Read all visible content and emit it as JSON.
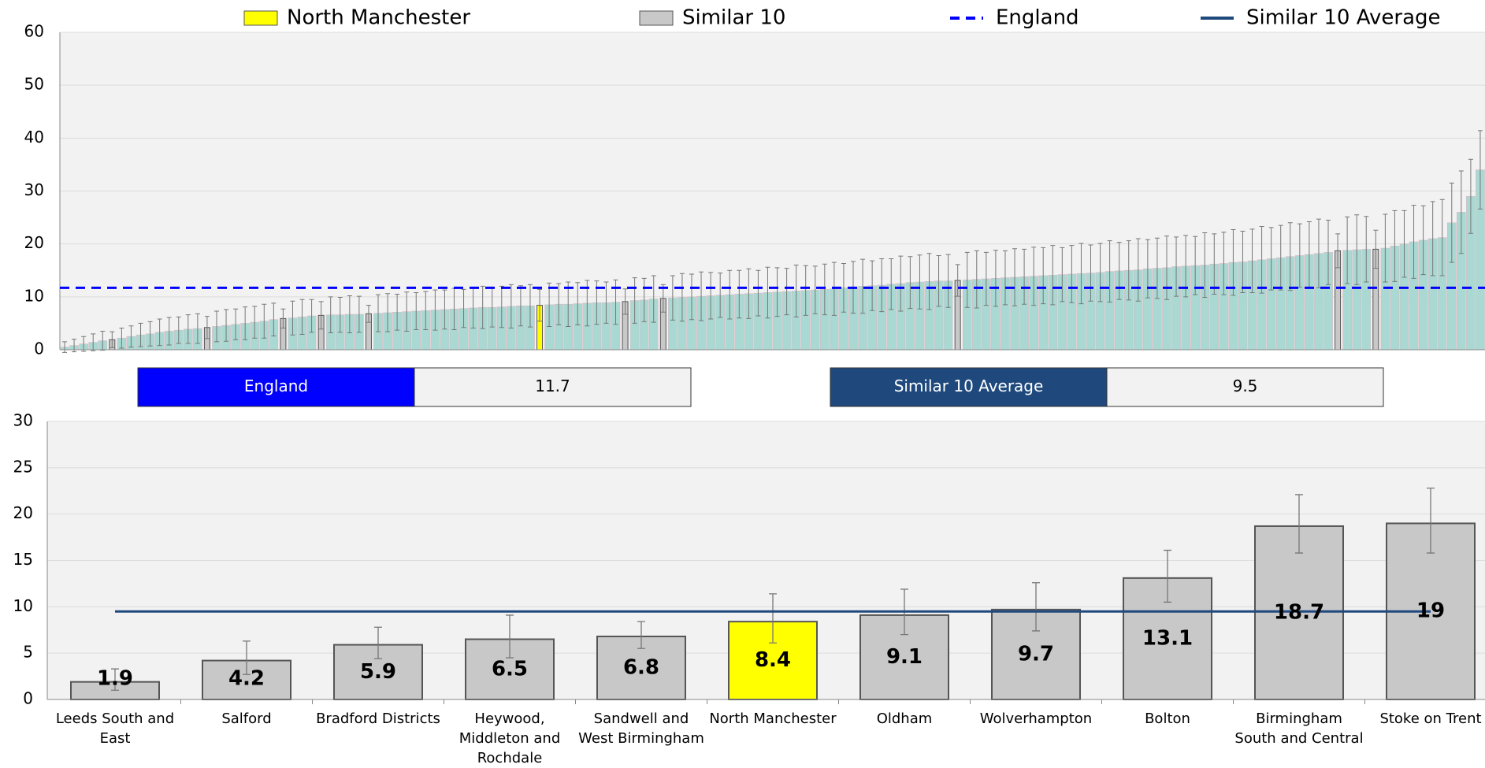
{
  "chart_data": [
    {
      "type": "bar",
      "values": [
        0.5,
        0.8,
        1.1,
        1.4,
        1.7,
        1.9,
        2.2,
        2.5,
        2.8,
        3.0,
        3.3,
        3.5,
        3.7,
        3.9,
        4.0,
        4.2,
        4.4,
        4.6,
        4.8,
        5.0,
        5.2,
        5.4,
        5.7,
        5.9,
        6.0,
        6.2,
        6.4,
        6.5,
        6.6,
        6.6,
        6.7,
        6.7,
        6.8,
        6.9,
        7.0,
        7.1,
        7.2,
        7.3,
        7.4,
        7.5,
        7.6,
        7.7,
        7.8,
        7.9,
        8.0,
        8.0,
        8.1,
        8.2,
        8.3,
        8.3,
        8.4,
        8.5,
        8.6,
        8.6,
        8.7,
        8.8,
        8.9,
        8.9,
        9.0,
        9.1,
        9.3,
        9.4,
        9.6,
        9.7,
        9.8,
        9.9,
        10.0,
        10.1,
        10.2,
        10.3,
        10.4,
        10.5,
        10.6,
        10.7,
        10.8,
        10.9,
        11.0,
        11.1,
        11.2,
        11.3,
        11.4,
        11.5,
        11.7,
        11.8,
        12.0,
        12.1,
        12.2,
        12.4,
        12.5,
        12.7,
        12.8,
        12.9,
        13.0,
        13.0,
        13.1,
        13.2,
        13.3,
        13.4,
        13.5,
        13.6,
        13.7,
        13.8,
        13.9,
        14.0,
        14.1,
        14.2,
        14.3,
        14.4,
        14.5,
        14.6,
        14.8,
        14.9,
        15.0,
        15.1,
        15.3,
        15.4,
        15.5,
        15.7,
        15.8,
        15.9,
        16.0,
        16.2,
        16.3,
        16.5,
        16.6,
        16.8,
        17.0,
        17.2,
        17.4,
        17.6,
        17.8,
        18.0,
        18.2,
        18.4,
        18.7,
        18.8,
        18.9,
        19.0,
        19.0,
        19.2,
        19.6,
        20.0,
        20.4,
        20.7,
        21.0,
        21.2,
        24.0,
        26.0,
        29.0,
        34.0
      ],
      "errors": [
        1.0,
        1.2,
        1.4,
        1.6,
        1.8,
        1.5,
        1.9,
        2.0,
        2.2,
        2.3,
        2.5,
        2.6,
        2.5,
        2.7,
        2.8,
        2.1,
        2.9,
        3.0,
        2.9,
        3.1,
        3.0,
        3.2,
        3.1,
        1.8,
        3.2,
        3.3,
        3.1,
        2.6,
        3.4,
        3.3,
        3.5,
        3.4,
        1.6,
        3.5,
        3.6,
        3.4,
        3.7,
        3.5,
        3.6,
        3.8,
        3.7,
        3.9,
        3.6,
        3.8,
        4.0,
        3.7,
        3.9,
        4.1,
        3.8,
        4.0,
        3.0,
        4.1,
        3.9,
        4.2,
        4.0,
        4.3,
        4.1,
        3.9,
        4.2,
        2.4,
        4.3,
        4.1,
        4.4,
        2.6,
        4.2,
        4.5,
        4.3,
        4.6,
        4.4,
        4.2,
        4.6,
        4.5,
        4.7,
        4.3,
        4.8,
        4.6,
        4.4,
        4.9,
        4.7,
        4.5,
        4.8,
        5.0,
        4.6,
        4.9,
        5.1,
        4.7,
        5.0,
        4.8,
        5.2,
        4.9,
        5.1,
        5.3,
        4.8,
        5.0,
        3.0,
        5.2,
        5.4,
        5.0,
        5.3,
        5.1,
        5.4,
        5.2,
        5.5,
        5.3,
        5.6,
        5.1,
        5.4,
        5.7,
        5.3,
        5.5,
        5.8,
        5.4,
        5.6,
        5.9,
        5.5,
        5.7,
        6.0,
        5.6,
        5.8,
        5.5,
        6.1,
        5.7,
        5.9,
        6.2,
        5.8,
        6.0,
        6.3,
        5.9,
        6.1,
        6.4,
        6.0,
        6.2,
        6.5,
        6.1,
        3.2,
        6.3,
        6.6,
        6.2,
        3.6,
        6.4,
        6.7,
        6.3,
        6.9,
        6.5,
        7.0,
        7.2,
        7.5,
        7.8,
        7.0,
        7.4
      ],
      "color": "#a9d9d2",
      "series": [
        {
          "name": "North Manchester",
          "color": "#ffff00",
          "indices": [
            50
          ]
        },
        {
          "name": "Similar 10",
          "color": "#c8c8c8",
          "indices": [
            5,
            15,
            23,
            27,
            32,
            59,
            63,
            94,
            134,
            138
          ]
        }
      ],
      "lines": [
        {
          "name": "England",
          "value": 11.7,
          "color": "#0000ff",
          "style": "dashed",
          "drawn": true
        },
        {
          "name": "Similar 10 Average",
          "value": 9.5,
          "color": "#1f497d",
          "style": "solid",
          "drawn": false
        }
      ],
      "ylim": [
        0,
        60
      ],
      "yticks": [
        0,
        10,
        20,
        30,
        40,
        50,
        60
      ],
      "grid": true
    },
    {
      "type": "bar",
      "categories": [
        "Leeds South and East",
        "Salford",
        "Bradford Districts",
        "Heywood, Middleton and Rochdale",
        "Sandwell and West Birmingham",
        "North Manchester",
        "Oldham",
        "Wolverhampton",
        "Bolton",
        "Birmingham South and Central",
        "Stoke on Trent"
      ],
      "values": [
        1.9,
        4.2,
        5.9,
        6.5,
        6.8,
        8.4,
        9.1,
        9.7,
        13.1,
        18.7,
        19
      ],
      "error_low": [
        1.0,
        2.7,
        4.4,
        4.5,
        5.5,
        6.1,
        7.0,
        7.4,
        10.5,
        15.8,
        15.8
      ],
      "error_high": [
        3.3,
        6.3,
        7.8,
        9.1,
        8.4,
        11.4,
        11.9,
        12.6,
        16.1,
        22.1,
        22.8
      ],
      "color": "#c8c8c8",
      "ylim": [
        0,
        30
      ],
      "yticks": [
        0,
        5,
        10,
        15,
        20,
        25,
        30
      ],
      "grid": true
    }
  ]
}
